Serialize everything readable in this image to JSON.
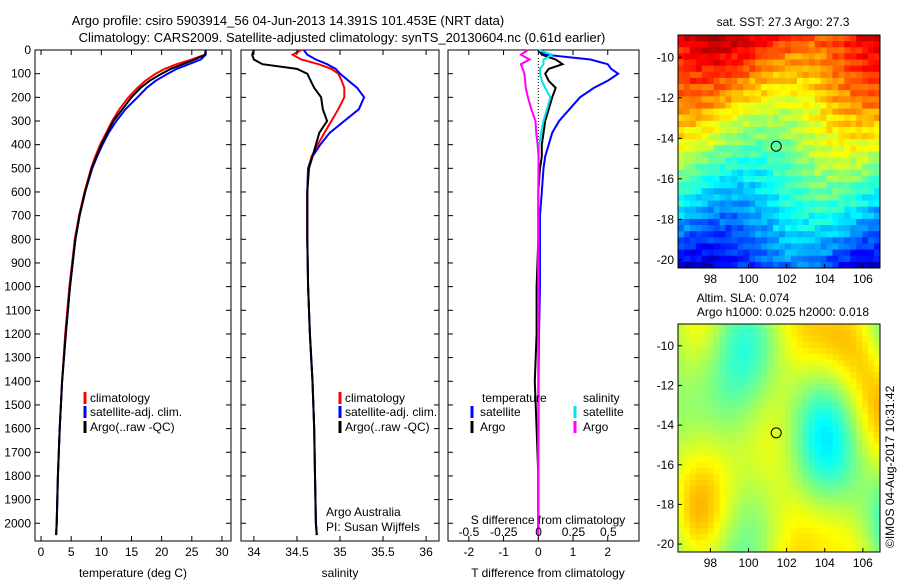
{
  "title": {
    "line1": "Argo profile: csiro 5903914_56 04-Jun-2013 14.391S 101.453E (NRT data)",
    "line2": "Climatology: CARS2009. Satellite-adjusted climatology: synTS_20130604.nc (0.61d earlier)"
  },
  "depth_ticks": [
    0,
    100,
    200,
    300,
    400,
    500,
    600,
    700,
    800,
    900,
    1000,
    1100,
    1200,
    1300,
    1400,
    1500,
    1600,
    1700,
    1800,
    1900,
    2000
  ],
  "colors": {
    "climatology": "#ff0000",
    "satellite": "#0000ff",
    "argo": "#000000",
    "satellite_salinity": "#00e5e5",
    "argo_salinity": "#ff00ff"
  },
  "panels": {
    "temperature": {
      "xlabel": "temperature (deg C)",
      "legend": [
        "climatology",
        "satellite-adj. clim.",
        "Argo(..raw -QC)"
      ]
    },
    "salinity": {
      "xlabel": "salinity",
      "legend": [
        "climatology",
        "satellite-adj. clim.",
        "Argo(..raw -QC)"
      ],
      "annotation1": "Argo Australia",
      "annotation2": "PI: Susan Wijffels"
    },
    "difference": {
      "top_label": "S difference from climatology",
      "xlabel": "T difference from climatology",
      "legend_temperature_head": "temperature",
      "legend_salinity_head": "salinity",
      "legend_satellite": "satellite",
      "legend_argo": "Argo"
    }
  },
  "maps": {
    "sst_title": "sat. SST: 27.3 Argo: 27.3",
    "sla_title1": "Altim. SLA: 0.074",
    "sla_title2": "Argo h1000: 0.025 h2000: 0.018",
    "lon_ticks": [
      98,
      100,
      102,
      104,
      106
    ],
    "lat_ticks": [
      -10,
      -12,
      -14,
      -16,
      -18,
      -20
    ],
    "argo_position": {
      "lon": 101.453,
      "lat": -14.391
    }
  },
  "footer": "©IMOS 04-Aug-2017 10:31:42",
  "chart_data": [
    {
      "type": "line",
      "name": "temperature",
      "xlabel": "temperature (deg C)",
      "ylabel": "",
      "xlim": [
        -1,
        31.5
      ],
      "ylim": [
        2075,
        0
      ],
      "xticks": [
        0,
        5,
        10,
        15,
        20,
        25,
        30
      ],
      "y": [
        0,
        20,
        40,
        60,
        80,
        100,
        130,
        160,
        200,
        250,
        300,
        350,
        400,
        450,
        500,
        600,
        700,
        800,
        1000,
        1200,
        1400,
        1600,
        1800,
        2000,
        2050
      ],
      "series": [
        {
          "name": "climatology",
          "values": [
            27.3,
            27.2,
            25,
            22.5,
            20.5,
            19,
            17.3,
            16,
            14.5,
            13,
            11.8,
            10.8,
            9.8,
            9,
            8.3,
            7.2,
            6.3,
            5.6,
            4.7,
            4.0,
            3.5,
            3.1,
            2.8,
            2.6,
            2.5
          ]
        },
        {
          "name": "satellite-adj. clim.",
          "values": [
            27.3,
            27.3,
            26.5,
            24.5,
            22.5,
            21,
            19,
            17.5,
            16,
            14,
            12.5,
            11.2,
            10.2,
            9.3,
            8.5,
            7.3,
            6.4,
            5.7,
            4.8,
            4.1,
            3.5,
            3.1,
            2.8,
            2.6,
            2.5
          ]
        },
        {
          "name": "Argo(..raw -QC)",
          "values": [
            27.3,
            27.2,
            25.5,
            23.5,
            21.5,
            20,
            18,
            16.5,
            15,
            13.5,
            12,
            11,
            10,
            9.2,
            8.4,
            7.3,
            6.4,
            5.7,
            4.8,
            4.1,
            3.5,
            3.1,
            2.8,
            2.6,
            2.5
          ]
        }
      ]
    },
    {
      "type": "line",
      "name": "salinity",
      "xlabel": "salinity",
      "ylabel": "",
      "xlim": [
        33.85,
        36.15
      ],
      "ylim": [
        2075,
        0
      ],
      "xticks": [
        34,
        34.5,
        35,
        35.5,
        36
      ],
      "y": [
        0,
        20,
        40,
        60,
        80,
        100,
        130,
        160,
        200,
        250,
        300,
        350,
        400,
        450,
        500,
        600,
        700,
        800,
        1000,
        1200,
        1400,
        1600,
        1800,
        2000,
        2050
      ],
      "series": [
        {
          "name": "climatology",
          "values": [
            34.55,
            34.45,
            34.55,
            34.75,
            34.9,
            34.98,
            35.02,
            35.05,
            35.05,
            34.98,
            34.9,
            34.82,
            34.74,
            34.67,
            34.63,
            34.62,
            34.62,
            34.62,
            34.63,
            34.65,
            34.68,
            34.7,
            34.71,
            34.72,
            34.73
          ]
        },
        {
          "name": "satellite-adj. clim.",
          "values": [
            34.58,
            34.62,
            34.72,
            34.85,
            34.95,
            35.0,
            35.1,
            35.2,
            35.28,
            35.22,
            35.05,
            34.88,
            34.77,
            34.68,
            34.63,
            34.62,
            34.62,
            34.62,
            34.63,
            34.65,
            34.68,
            34.7,
            34.71,
            34.72,
            34.73
          ]
        },
        {
          "name": "Argo(..raw -QC)",
          "values": [
            34.0,
            33.98,
            34.0,
            34.1,
            34.5,
            34.62,
            34.66,
            34.7,
            34.78,
            34.8,
            34.85,
            34.76,
            34.72,
            34.68,
            34.64,
            34.62,
            34.62,
            34.62,
            34.63,
            34.65,
            34.68,
            34.7,
            34.71,
            34.72,
            34.73
          ]
        }
      ]
    },
    {
      "type": "line",
      "name": "difference",
      "xlabel": "T difference from climatology",
      "ylabel": "",
      "top_xlabel": "S difference from climatology",
      "xlim": [
        -2.6,
        2.9
      ],
      "ylim": [
        2075,
        0
      ],
      "xticks": [
        -2,
        -1,
        0,
        1,
        2
      ],
      "top_xticks": [
        -0.5,
        -0.25,
        0,
        0.25,
        0.5
      ],
      "y": [
        0,
        20,
        40,
        60,
        80,
        100,
        130,
        160,
        200,
        250,
        300,
        350,
        400,
        450,
        500,
        600,
        700,
        800,
        1000,
        1200,
        1400,
        1600,
        1800,
        2000,
        2050
      ],
      "series": [
        {
          "name": "temperature satellite",
          "values": [
            0,
            0.2,
            1.5,
            2.0,
            2.1,
            2.3,
            2.0,
            1.6,
            1.2,
            0.9,
            0.6,
            0.4,
            0.3,
            0.2,
            0.15,
            0.1,
            0.05,
            0.05,
            0.05,
            0.02,
            0.01,
            0.01,
            0,
            0,
            0
          ]
        },
        {
          "name": "temperature Argo",
          "values": [
            0,
            0.1,
            0.5,
            0.7,
            0.3,
            0.2,
            0.3,
            0.5,
            0.4,
            0.3,
            0.2,
            0.15,
            0.1,
            0.1,
            0.05,
            0,
            0,
            0,
            -0.05,
            -0.05,
            -0.1,
            -0.05,
            0,
            0,
            0
          ]
        },
        {
          "name": "salinity satellite",
          "values": [
            0,
            0.4,
            0.15,
            0.15,
            0.05,
            0.05,
            0.1,
            0.2,
            0.35,
            0.25,
            0.15,
            0.08,
            0.03,
            0.01,
            0,
            0,
            0,
            0,
            0,
            0,
            0,
            0,
            0,
            0,
            0
          ]
        },
        {
          "name": "salinity Argo",
          "values": [
            -0.3,
            -0.5,
            -0.25,
            -0.5,
            -0.45,
            -0.4,
            -0.38,
            -0.36,
            -0.3,
            -0.2,
            -0.08,
            -0.06,
            -0.02,
            0.01,
            0.01,
            0,
            0,
            0,
            0,
            0,
            0,
            0,
            0,
            0,
            0
          ]
        }
      ]
    },
    {
      "type": "heatmap",
      "name": "satellite SST",
      "title": "sat. SST: 27.3 Argo: 27.3",
      "xlim": [
        96.3,
        106.9
      ],
      "ylim": [
        -20.4,
        -8.9
      ],
      "xticks": [
        98,
        100,
        102,
        104,
        106
      ],
      "yticks": [
        -10,
        -12,
        -14,
        -16,
        -18,
        -20
      ]
    },
    {
      "type": "heatmap",
      "name": "altimeter SLA",
      "title": "Altim. SLA: 0.074",
      "xlim": [
        96.3,
        106.9
      ],
      "ylim": [
        -20.4,
        -8.9
      ],
      "xticks": [
        98,
        100,
        102,
        104,
        106
      ],
      "yticks": [
        -10,
        -12,
        -14,
        -16,
        -18,
        -20
      ]
    }
  ]
}
